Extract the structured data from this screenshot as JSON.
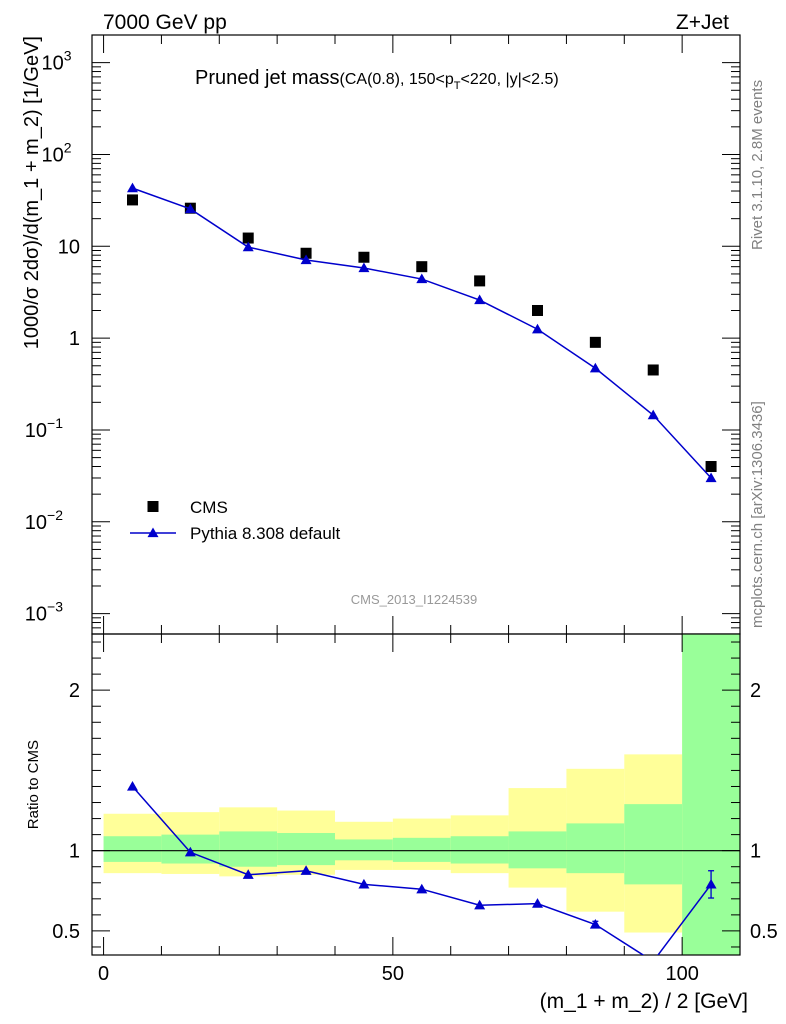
{
  "header": {
    "left": "7000 GeV pp",
    "right": "Z+Jet"
  },
  "title": {
    "main": "Pruned jet mass",
    "sub_a": "(CA(0.8), 150<p",
    "sub_sub": "T",
    "sub_b": "<220, |y|<2.5)"
  },
  "side_labels": {
    "rivet": "Rivet 3.1.10,  2.8M events",
    "mcplots": "mcplots.cern.ch [arXiv:1306.3436]"
  },
  "watermark": "CMS_2013_I1224539",
  "colors": {
    "mc": "#0000cc",
    "band_stat": "#99ff99",
    "band_total": "#ffff99",
    "data": "#000000"
  },
  "chart_data": [
    {
      "type": "scatter",
      "name": "main-panel",
      "ylabel": "1000/σ 2dσ)/d(m_1 + m_2) [1/GeV]",
      "yscale": "log",
      "xlim": [
        -2,
        110
      ],
      "ylim": [
        0.0006,
        2000
      ],
      "y_ticks": [
        {
          "v": 0.001,
          "base": "10",
          "exp": "−3"
        },
        {
          "v": 0.01,
          "base": "10",
          "exp": "−2"
        },
        {
          "v": 0.1,
          "base": "10",
          "exp": "−1"
        },
        {
          "v": 1,
          "base": "1",
          "exp": ""
        },
        {
          "v": 10,
          "base": "10",
          "exp": ""
        },
        {
          "v": 100,
          "base": "10",
          "exp": "2"
        },
        {
          "v": 1000,
          "base": "10",
          "exp": "3"
        }
      ],
      "legend": {
        "position": "bottom-left"
      },
      "series": [
        {
          "name": "CMS",
          "marker": "square",
          "x": [
            5,
            15,
            25,
            35,
            45,
            55,
            65,
            75,
            85,
            95,
            105
          ],
          "y": [
            32,
            26,
            12.3,
            8.4,
            7.6,
            6.0,
            4.2,
            2.0,
            0.9,
            0.45,
            0.04
          ]
        },
        {
          "name": "Pythia 8.308 default",
          "marker": "triangle",
          "x": [
            5,
            15,
            25,
            35,
            45,
            55,
            65,
            75,
            85,
            95,
            105
          ],
          "y": [
            43,
            25.5,
            9.8,
            7.1,
            5.8,
            4.4,
            2.6,
            1.25,
            0.47,
            0.145,
            0.03
          ]
        }
      ]
    },
    {
      "type": "line",
      "name": "ratio-panel",
      "xlabel": "(m_1 + m_2) / 2 [GeV]",
      "ylabel": "Ratio to CMS",
      "xlim": [
        -2,
        110
      ],
      "ylim": [
        0.35,
        2.35
      ],
      "x_ticks": [
        0,
        50,
        100
      ],
      "y_ticks": [
        0.5,
        1,
        2
      ],
      "reference_line": 1,
      "bins": [
        {
          "lo": 0,
          "hi": 10,
          "stat": [
            0.93,
            1.09
          ],
          "total": [
            0.86,
            1.23
          ]
        },
        {
          "lo": 10,
          "hi": 20,
          "stat": [
            0.92,
            1.1
          ],
          "total": [
            0.855,
            1.24
          ]
        },
        {
          "lo": 20,
          "hi": 30,
          "stat": [
            0.9,
            1.12
          ],
          "total": [
            0.84,
            1.27
          ]
        },
        {
          "lo": 30,
          "hi": 40,
          "stat": [
            0.91,
            1.11
          ],
          "total": [
            0.85,
            1.25
          ]
        },
        {
          "lo": 40,
          "hi": 50,
          "stat": [
            0.94,
            1.07
          ],
          "total": [
            0.88,
            1.18
          ]
        },
        {
          "lo": 50,
          "hi": 60,
          "stat": [
            0.93,
            1.08
          ],
          "total": [
            0.88,
            1.2
          ]
        },
        {
          "lo": 60,
          "hi": 70,
          "stat": [
            0.92,
            1.09
          ],
          "total": [
            0.86,
            1.22
          ]
        },
        {
          "lo": 70,
          "hi": 80,
          "stat": [
            0.89,
            1.12
          ],
          "total": [
            0.77,
            1.39
          ]
        },
        {
          "lo": 80,
          "hi": 90,
          "stat": [
            0.86,
            1.17
          ],
          "total": [
            0.62,
            1.51
          ]
        },
        {
          "lo": 90,
          "hi": 100,
          "stat": [
            0.79,
            1.29
          ],
          "total": [
            0.49,
            1.6
          ]
        },
        {
          "lo": 100,
          "hi": 110,
          "stat": [
            0.35,
            2.35
          ],
          "total": [
            0.35,
            2.35
          ]
        }
      ],
      "series": [
        {
          "name": "Pythia 8.308 default",
          "x": [
            5,
            15,
            25,
            35,
            45,
            55,
            65,
            75,
            85,
            95,
            105
          ],
          "y": [
            1.4,
            0.99,
            0.85,
            0.875,
            0.79,
            0.76,
            0.66,
            0.67,
            0.54,
            0.31,
            0.79
          ],
          "yerr": [
            0,
            0,
            0,
            0,
            0,
            0,
            0,
            0,
            0.02,
            0,
            0.085
          ]
        }
      ]
    }
  ]
}
